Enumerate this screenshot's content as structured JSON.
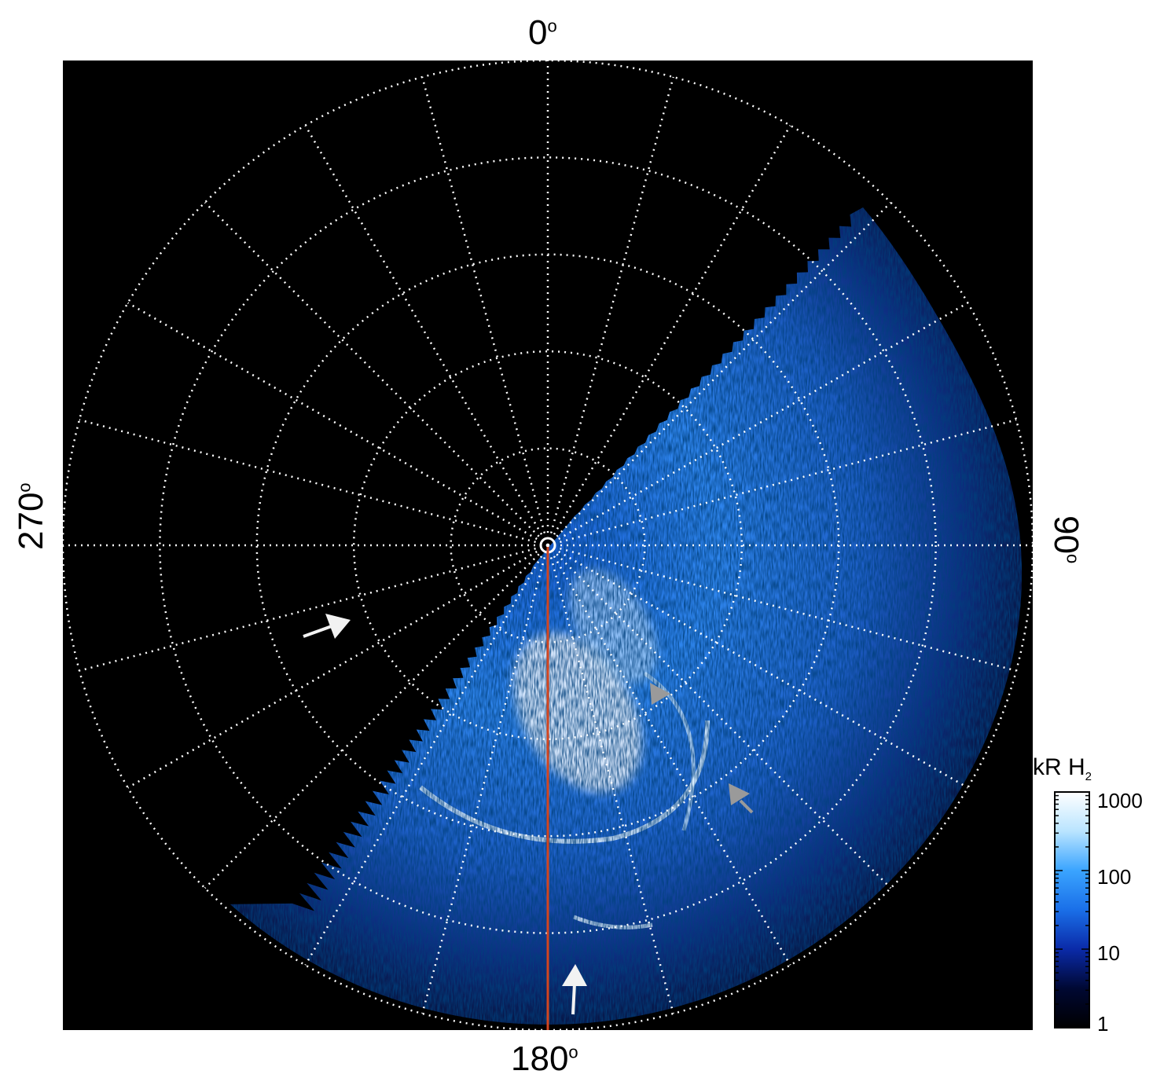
{
  "figure": {
    "azimuth_labels": {
      "top": "0",
      "right": "90",
      "bottom": "180",
      "left": "270",
      "degree_symbol": "o"
    },
    "colorbar": {
      "title_main": "kR H",
      "title_subscript": "2",
      "tick_labels": [
        "1000",
        "100",
        "10",
        "1"
      ],
      "scale": "log",
      "range": [
        1,
        1000
      ],
      "colors": [
        "#000000",
        "#000833",
        "#0a2aa8",
        "#1a6fe8",
        "#3aa4ff",
        "#b9e4ff",
        "#ffffff"
      ]
    },
    "colors": {
      "background": "#000000",
      "grid": "#ffffff",
      "aurora_blue": "#1f6fe0",
      "meridian_line": "#d2451f",
      "arrow_white": "#f2f2f2",
      "arrow_gray": "#9a9a9a"
    },
    "grid": {
      "meridians_every_deg": 15,
      "latitude_circles": 5,
      "style": "dotted"
    },
    "annotations": [
      "white-arrow-left",
      "white-arrow-bottom",
      "gray-arrow-upper",
      "gray-arrow-lower"
    ]
  }
}
